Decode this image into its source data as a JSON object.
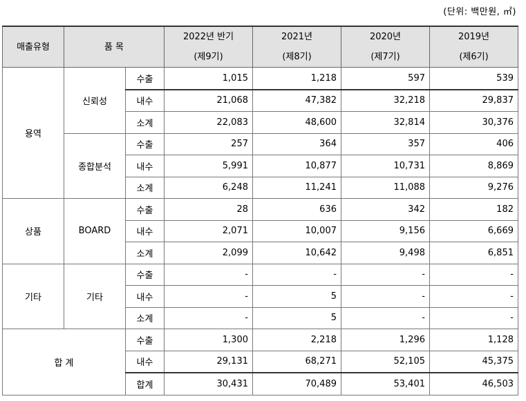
{
  "unit_note": "(단위: 백만원, ㎡)",
  "headers": {
    "sales_type": "매출유형",
    "item": "품 목",
    "periods": [
      {
        "year": "2022년 반기",
        "term": "(제9기)"
      },
      {
        "year": "2021년",
        "term": "(제8기)"
      },
      {
        "year": "2020년",
        "term": "(제7기)"
      },
      {
        "year": "2019년",
        "term": "(제6기)"
      }
    ]
  },
  "groups": [
    {
      "type": "용역",
      "items": [
        {
          "name": "신뢰성",
          "rows": [
            {
              "sub": "수출",
              "values": [
                "1,015",
                "1,218",
                "597",
                "539"
              ]
            },
            {
              "sub": "내수",
              "values": [
                "21,068",
                "47,382",
                "32,218",
                "29,837"
              ]
            },
            {
              "sub": "소계",
              "values": [
                "22,083",
                "48,600",
                "32,814",
                "30,376"
              ]
            }
          ]
        },
        {
          "name": "종합분석",
          "rows": [
            {
              "sub": "수출",
              "values": [
                "257",
                "364",
                "357",
                "406"
              ]
            },
            {
              "sub": "내수",
              "values": [
                "5,991",
                "10,877",
                "10,731",
                "8,869"
              ]
            },
            {
              "sub": "소계",
              "values": [
                "6,248",
                "11,241",
                "11,088",
                "9,276"
              ]
            }
          ]
        }
      ]
    },
    {
      "type": "상품",
      "items": [
        {
          "name": "BOARD",
          "rows": [
            {
              "sub": "수출",
              "values": [
                "28",
                "636",
                "342",
                "182"
              ]
            },
            {
              "sub": "내수",
              "values": [
                "2,071",
                "10,007",
                "9,156",
                "6,669"
              ]
            },
            {
              "sub": "소계",
              "values": [
                "2,099",
                "10,642",
                "9,498",
                "6,851"
              ]
            }
          ]
        }
      ]
    },
    {
      "type": "기타",
      "items": [
        {
          "name": "기타",
          "rows": [
            {
              "sub": "수출",
              "values": [
                "-",
                "-",
                "-",
                "-"
              ]
            },
            {
              "sub": "내수",
              "values": [
                "-",
                "5",
                "-",
                "-"
              ]
            },
            {
              "sub": "소계",
              "values": [
                "-",
                "5",
                "-",
                "-"
              ]
            }
          ]
        }
      ]
    }
  ],
  "total": {
    "label": "합 계",
    "rows": [
      {
        "sub": "수출",
        "values": [
          "1,300",
          "2,218",
          "1,296",
          "1,128"
        ]
      },
      {
        "sub": "내수",
        "values": [
          "29,131",
          "68,271",
          "52,105",
          "45,375"
        ]
      },
      {
        "sub": "합계",
        "values": [
          "30,431",
          "70,489",
          "53,401",
          "46,503"
        ]
      }
    ]
  }
}
